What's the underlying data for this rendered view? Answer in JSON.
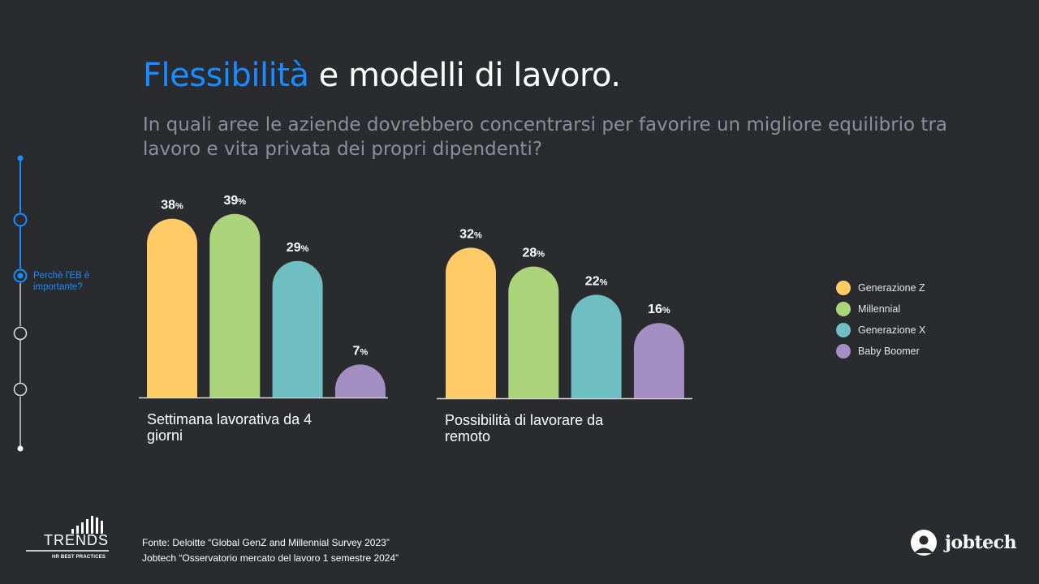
{
  "slide": {
    "title_accent": "Flessibilità",
    "title_rest": " e modelli di lavoro.",
    "subtitle": "In quali aree le aziende dovrebbero concentrarsi per favorire un migliore equilibrio tra lavoro e vita privata dei propri dipendenti?"
  },
  "timeline": {
    "active_label": "Perchè l'EB è importante?"
  },
  "colors": {
    "accent": "#1a8cff",
    "genz": "#fecb67",
    "millennial": "#acd57b",
    "genx": "#6ebec2",
    "boomer": "#a48fc4"
  },
  "chart_data": {
    "type": "bar",
    "categories": [
      "Settimana lavorativa da 4 giorni",
      "Possibilità di lavorare da remoto"
    ],
    "series": [
      {
        "name": "Generazione Z",
        "values": [
          38,
          32
        ]
      },
      {
        "name": "Millennial",
        "values": [
          39,
          28
        ]
      },
      {
        "name": "Generazione X",
        "values": [
          29,
          22
        ]
      },
      {
        "name": "Baby Boomer",
        "values": [
          7,
          16
        ]
      }
    ],
    "unit": "%",
    "legend_position": "right",
    "grid": false
  },
  "legend": {
    "items": [
      "Generazione Z",
      "Millennial",
      "Generazione X",
      "Baby Boomer"
    ]
  },
  "footer": {
    "source_line1": "Fonte: Deloitte “Global GenZ and Millennial Survey 2023”",
    "source_line2": "Jobtech “Osservatorio mercato del lavoro 1 semestre 2024”",
    "trends_logo_text": "TRENDS",
    "trends_logo_sub": "HR BEST PRACTICES",
    "jobtech_logo_text": "jobtech"
  }
}
